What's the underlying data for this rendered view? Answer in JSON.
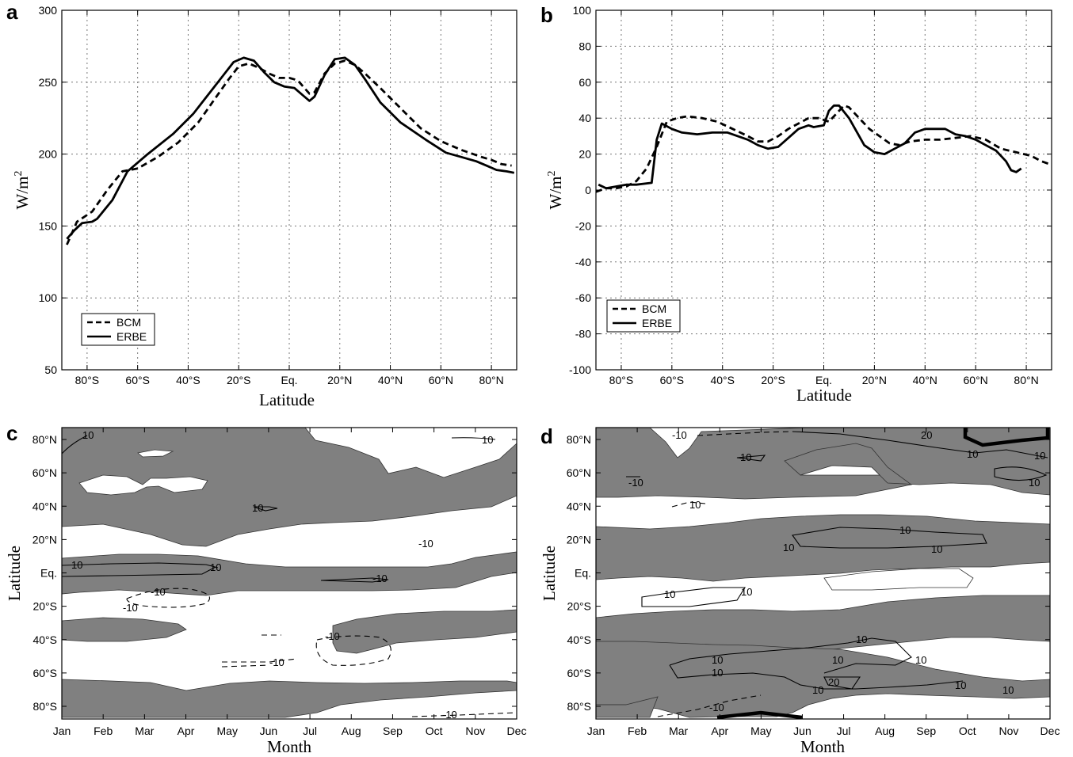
{
  "chart_data": [
    {
      "panel": "a",
      "type": "line",
      "xlabel": "Latitude",
      "ylabel": "W/m",
      "ylabel_sup": "2",
      "ylim": [
        50,
        300
      ],
      "yticks": [
        50,
        100,
        150,
        200,
        250,
        300
      ],
      "xlim": [
        -90,
        90
      ],
      "xticks": [
        {
          "v": -80,
          "label": "80°S"
        },
        {
          "v": -60,
          "label": "60°S"
        },
        {
          "v": -40,
          "label": "40°S"
        },
        {
          "v": -20,
          "label": "20°S"
        },
        {
          "v": 0,
          "label": "Eq."
        },
        {
          "v": 20,
          "label": "20°N"
        },
        {
          "v": 40,
          "label": "40°N"
        },
        {
          "v": 60,
          "label": "60°N"
        },
        {
          "v": 80,
          "label": "80°N"
        }
      ],
      "grid": true,
      "legend_position": "lower-left",
      "series": [
        {
          "name": "BCM",
          "style": "dashed",
          "points": [
            [
              -88,
              137
            ],
            [
              -84,
              153
            ],
            [
              -78,
              160
            ],
            [
              -72,
              175
            ],
            [
              -66,
              188
            ],
            [
              -60,
              190
            ],
            [
              -52,
              198
            ],
            [
              -44,
              208
            ],
            [
              -36,
              222
            ],
            [
              -28,
              242
            ],
            [
              -24,
              252
            ],
            [
              -20,
              261
            ],
            [
              -16,
              263
            ],
            [
              -12,
              260
            ],
            [
              -8,
              256
            ],
            [
              -4,
              253
            ],
            [
              0,
              253
            ],
            [
              2,
              252
            ],
            [
              4,
              250
            ],
            [
              6,
              246
            ],
            [
              8,
              242
            ],
            [
              10,
              243
            ],
            [
              14,
              256
            ],
            [
              18,
              263
            ],
            [
              22,
              265
            ],
            [
              26,
              262
            ],
            [
              30,
              256
            ],
            [
              36,
              246
            ],
            [
              44,
              232
            ],
            [
              52,
              218
            ],
            [
              60,
              209
            ],
            [
              68,
              203
            ],
            [
              76,
              198
            ],
            [
              80,
              196
            ],
            [
              84,
              193
            ],
            [
              88,
              192
            ]
          ]
        },
        {
          "name": "ERBE",
          "style": "solid",
          "points": [
            [
              -88,
              141
            ],
            [
              -85,
              147
            ],
            [
              -82,
              152
            ],
            [
              -78,
              153
            ],
            [
              -76,
              155
            ],
            [
              -70,
              168
            ],
            [
              -64,
              188
            ],
            [
              -56,
              200
            ],
            [
              -46,
              214
            ],
            [
              -38,
              228
            ],
            [
              -30,
              246
            ],
            [
              -26,
              255
            ],
            [
              -22,
              264
            ],
            [
              -18,
              267
            ],
            [
              -14,
              265
            ],
            [
              -10,
              257
            ],
            [
              -6,
              250
            ],
            [
              -2,
              247
            ],
            [
              2,
              246
            ],
            [
              6,
              240
            ],
            [
              8,
              237
            ],
            [
              10,
              240
            ],
            [
              14,
              255
            ],
            [
              18,
              266
            ],
            [
              22,
              267
            ],
            [
              26,
              262
            ],
            [
              30,
              252
            ],
            [
              36,
              236
            ],
            [
              44,
              222
            ],
            [
              54,
              210
            ],
            [
              62,
              201
            ],
            [
              68,
              198
            ],
            [
              74,
              195
            ],
            [
              78,
              192
            ],
            [
              82,
              189
            ],
            [
              86,
              188
            ],
            [
              89,
              187
            ]
          ]
        }
      ]
    },
    {
      "panel": "b",
      "type": "line",
      "xlabel": "Latitude",
      "ylabel": "W/m",
      "ylabel_sup": "2",
      "ylim": [
        -100,
        100
      ],
      "yticks": [
        -100,
        -80,
        -60,
        -40,
        -20,
        0,
        20,
        40,
        60,
        80,
        100
      ],
      "xlim": [
        -90,
        90
      ],
      "xticks": [
        {
          "v": -80,
          "label": "80°S"
        },
        {
          "v": -60,
          "label": "60°S"
        },
        {
          "v": -40,
          "label": "40°S"
        },
        {
          "v": -20,
          "label": "20°S"
        },
        {
          "v": 0,
          "label": "Eq."
        },
        {
          "v": 20,
          "label": "20°N"
        },
        {
          "v": 40,
          "label": "40°N"
        },
        {
          "v": 60,
          "label": "60°N"
        },
        {
          "v": 80,
          "label": "80°N"
        }
      ],
      "grid": true,
      "legend_position": "lower-left",
      "series": [
        {
          "name": "BCM",
          "style": "dashed",
          "points": [
            [
              -90,
              -1
            ],
            [
              -86,
              1
            ],
            [
              -82,
              1
            ],
            [
              -78,
              2
            ],
            [
              -74,
              5
            ],
            [
              -70,
              12
            ],
            [
              -66,
              24
            ],
            [
              -62,
              38
            ],
            [
              -58,
              40
            ],
            [
              -54,
              41
            ],
            [
              -48,
              40
            ],
            [
              -42,
              38
            ],
            [
              -36,
              34
            ],
            [
              -30,
              30
            ],
            [
              -26,
              27
            ],
            [
              -22,
              27
            ],
            [
              -18,
              30
            ],
            [
              -14,
              34
            ],
            [
              -10,
              37
            ],
            [
              -6,
              40
            ],
            [
              -2,
              40
            ],
            [
              2,
              38
            ],
            [
              6,
              44
            ],
            [
              8,
              47
            ],
            [
              10,
              46
            ],
            [
              14,
              40
            ],
            [
              18,
              34
            ],
            [
              22,
              30
            ],
            [
              26,
              26
            ],
            [
              30,
              25
            ],
            [
              34,
              27
            ],
            [
              40,
              28
            ],
            [
              46,
              28
            ],
            [
              52,
              29
            ],
            [
              58,
              30
            ],
            [
              64,
              28
            ],
            [
              70,
              23
            ],
            [
              76,
              21
            ],
            [
              82,
              19
            ],
            [
              86,
              16
            ],
            [
              90,
              14
            ]
          ]
        },
        {
          "name": "ERBE",
          "style": "solid",
          "points": [
            [
              -89,
              3
            ],
            [
              -86,
              1
            ],
            [
              -82,
              2
            ],
            [
              -78,
              3
            ],
            [
              -74,
              3
            ],
            [
              -68,
              4
            ],
            [
              -66,
              28
            ],
            [
              -64,
              37
            ],
            [
              -60,
              34
            ],
            [
              -56,
              32
            ],
            [
              -50,
              31
            ],
            [
              -44,
              32
            ],
            [
              -38,
              32
            ],
            [
              -34,
              30
            ],
            [
              -30,
              28
            ],
            [
              -26,
              25
            ],
            [
              -22,
              23
            ],
            [
              -18,
              24
            ],
            [
              -14,
              29
            ],
            [
              -10,
              34
            ],
            [
              -6,
              36
            ],
            [
              -4,
              35
            ],
            [
              0,
              36
            ],
            [
              2,
              44
            ],
            [
              4,
              47
            ],
            [
              6,
              47
            ],
            [
              10,
              40
            ],
            [
              14,
              30
            ],
            [
              16,
              25
            ],
            [
              20,
              21
            ],
            [
              24,
              20
            ],
            [
              28,
              23
            ],
            [
              32,
              26
            ],
            [
              36,
              32
            ],
            [
              40,
              34
            ],
            [
              44,
              34
            ],
            [
              48,
              34
            ],
            [
              52,
              31
            ],
            [
              56,
              30
            ],
            [
              60,
              28
            ],
            [
              64,
              25
            ],
            [
              68,
              22
            ],
            [
              72,
              16
            ],
            [
              74,
              11
            ],
            [
              76,
              10
            ],
            [
              78,
              12
            ]
          ]
        }
      ]
    },
    {
      "panel": "c",
      "type": "heatmap",
      "xlabel": "Month",
      "ylabel": "Latitude",
      "xticks": [
        "Jan",
        "Feb",
        "Mar",
        "Apr",
        "May",
        "Jun",
        "Jul",
        "Aug",
        "Sep",
        "Oct",
        "Nov",
        "Dec"
      ],
      "yticks": [
        "80°N",
        "60°N",
        "40°N",
        "20°N",
        "Eq.",
        "20°S",
        "40°S",
        "60°S",
        "80°S"
      ],
      "shading": "grey = |difference| > 10 W/m2",
      "contour_labels": [
        "10",
        "10",
        "10",
        "10",
        "10",
        "-10",
        "-10",
        "-10",
        "-10",
        "-10",
        "-10",
        "-10"
      ]
    },
    {
      "panel": "d",
      "type": "heatmap",
      "xlabel": "Month",
      "ylabel": "Latitude",
      "xticks": [
        "Jan",
        "Feb",
        "Mar",
        "Apr",
        "May",
        "Jun",
        "Jul",
        "Aug",
        "Sep",
        "Oct",
        "Nov",
        "Dec"
      ],
      "yticks": [
        "80°N",
        "60°N",
        "40°N",
        "20°N",
        "Eq.",
        "20°S",
        "40°S",
        "60°S",
        "80°S"
      ],
      "shading": "grey = |difference| > 10 W/m2",
      "contour_labels": [
        "-10",
        "20",
        "10",
        "10",
        "10",
        "-10",
        "10",
        "10",
        "10",
        "10",
        "10",
        "10",
        "10",
        "10",
        "10",
        "10",
        "10",
        "10",
        "10",
        "20",
        "10",
        "-10",
        "10"
      ]
    }
  ]
}
